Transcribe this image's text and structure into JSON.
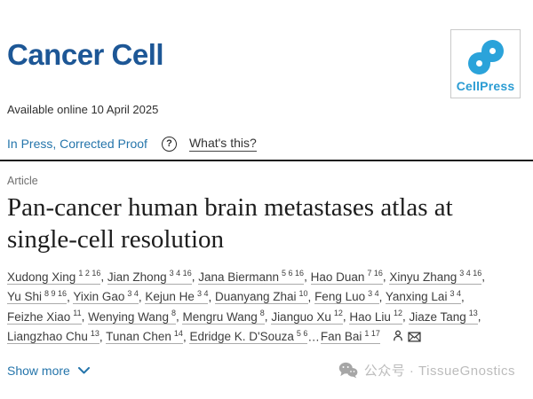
{
  "journal": {
    "name": "Cancer Cell"
  },
  "publisher": {
    "name": "CellPress"
  },
  "meta": {
    "available_online": "Available online 10 April 2025",
    "status": "In Press, Corrected Proof",
    "help_glyph": "?",
    "whats_this": "What's this?"
  },
  "article": {
    "type_label": "Article",
    "title": "Pan-cancer human brain metastases atlas at single-cell resolution"
  },
  "authors": {
    "items": [
      {
        "text": "Xudong Xing",
        "sup": "1 2 16",
        "trail": ","
      },
      {
        "text": "Jian Zhong",
        "sup": "3 4 16",
        "trail": ","
      },
      {
        "text": "Jana Biermann",
        "sup": "5 6 16",
        "trail": ","
      },
      {
        "text": "Hao Duan",
        "sup": "7 16",
        "trail": ","
      },
      {
        "text": "Xinyu Zhang",
        "sup": "3 4 16",
        "trail": ","
      },
      {
        "text": "Yu Shi",
        "sup": "8 9 16",
        "trail": ","
      },
      {
        "text": "Yixin Gao",
        "sup": "3 4",
        "trail": ","
      },
      {
        "text": "Kejun He",
        "sup": "3 4",
        "trail": ","
      },
      {
        "text": "Duanyang Zhai",
        "sup": "10",
        "trail": ","
      },
      {
        "text": "Feng Luo",
        "sup": "3 4",
        "trail": ","
      },
      {
        "text": "Yanxing Lai",
        "sup": "3 4",
        "trail": ","
      },
      {
        "text": "Feizhe Xiao",
        "sup": "11",
        "trail": ","
      },
      {
        "text": "Wenying Wang",
        "sup": "8",
        "trail": ","
      },
      {
        "text": "Mengru Wang",
        "sup": "8",
        "trail": ","
      },
      {
        "text": "Jianguo Xu",
        "sup": "12",
        "trail": ","
      },
      {
        "text": "Hao Liu",
        "sup": "12",
        "trail": ","
      },
      {
        "text": "Jiaze Tang",
        "sup": "13",
        "trail": ","
      },
      {
        "text": "Liangzhao Chu",
        "sup": "13",
        "trail": ","
      },
      {
        "text": "Tunan Chen",
        "sup": "14",
        "trail": ","
      },
      {
        "text": "Edridge K. D'Souza",
        "sup": "5 6",
        "trail": ""
      },
      {
        "plain": "…"
      },
      {
        "text": "Fan Bai",
        "sup": "1 17",
        "trail": "",
        "icons": true
      }
    ]
  },
  "show_more": {
    "label": "Show more"
  },
  "watermark": {
    "text": "公众号 · TissueGnostics"
  },
  "icons": {
    "status_help": "question-circle",
    "show_more": "chevron-down",
    "corresponding_author": [
      "person",
      "envelope"
    ],
    "watermark": "wechat"
  },
  "colors": {
    "journal_blue": "#1d5796",
    "cellpress_blue": "#2ba3da",
    "cellpress_text_blue": "#2b9cd3",
    "link_blue": "#2575ab",
    "divider": "#1b1b1b",
    "author_underline": "#ababab",
    "watermark_gray": "#bcbcbc"
  }
}
